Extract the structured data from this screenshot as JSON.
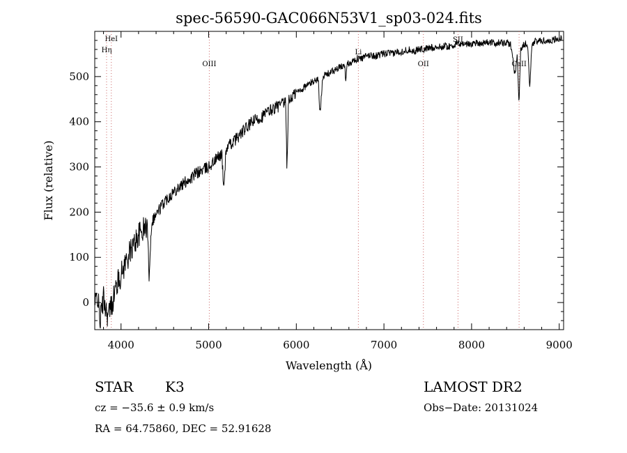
{
  "chart_data": {
    "type": "line",
    "title": "spec-56590-GAC066N53V1_sp03-024.fits",
    "xlabel": "Wavelength (Å)",
    "ylabel": "Flux (relative)",
    "xlim": [
      3700,
      9050
    ],
    "ylim": [
      -60,
      600
    ],
    "x_ticks": [
      4000,
      5000,
      6000,
      7000,
      8000,
      9000
    ],
    "y_ticks": [
      0,
      100,
      200,
      300,
      400,
      500
    ],
    "grid": false,
    "line_color": "#000000",
    "marker_color": "#cc6666",
    "spectral_lines": [
      {
        "name": "HeI",
        "wavelength": 3889
      },
      {
        "name": "Hη",
        "wavelength": 3835
      },
      {
        "name": "OIII",
        "wavelength": 5007
      },
      {
        "name": "Li",
        "wavelength": 6708
      },
      {
        "name": "OII",
        "wavelength": 7450
      },
      {
        "name": "SII",
        "wavelength": 7845
      },
      {
        "name": "CaII",
        "wavelength": 8542
      }
    ],
    "series": [
      {
        "x": [
          3700,
          3730,
          3760,
          3800,
          3850,
          3900,
          3950,
          4000,
          4050,
          4100,
          4150,
          4200,
          4250,
          4300,
          4320,
          4350,
          4400,
          4450,
          4500,
          4550,
          4600,
          4650,
          4700,
          4750,
          4800,
          4850,
          4900,
          4950,
          5000,
          5050,
          5100,
          5150,
          5170,
          5200,
          5250,
          5300,
          5350,
          5400,
          5450,
          5500,
          5550,
          5600,
          5650,
          5700,
          5750,
          5800,
          5850,
          5880,
          5893,
          5910,
          5950,
          6000,
          6050,
          6100,
          6150,
          6200,
          6250,
          6270,
          6300,
          6350,
          6400,
          6450,
          6500,
          6550,
          6563,
          6580,
          6600,
          6650,
          6700,
          6750,
          6800,
          6850,
          6900,
          6950,
          7000,
          7050,
          7100,
          7150,
          7200,
          7250,
          7300,
          7350,
          7400,
          7450,
          7500,
          7550,
          7600,
          7650,
          7700,
          7750,
          7800,
          7850,
          7900,
          7950,
          8000,
          8050,
          8100,
          8150,
          8200,
          8250,
          8300,
          8350,
          8400,
          8450,
          8498,
          8520,
          8542,
          8560,
          8600,
          8640,
          8662,
          8690,
          8750,
          8800,
          8850,
          8900,
          8950,
          9000,
          9030
        ],
        "y": [
          -10,
          20,
          -40,
          10,
          -30,
          0,
          40,
          60,
          90,
          110,
          130,
          150,
          160,
          170,
          60,
          180,
          195,
          210,
          225,
          235,
          245,
          255,
          260,
          270,
          275,
          285,
          290,
          295,
          300,
          310,
          320,
          330,
          250,
          340,
          350,
          360,
          370,
          380,
          390,
          400,
          405,
          410,
          418,
          425,
          430,
          435,
          440,
          440,
          290,
          445,
          455,
          465,
          470,
          478,
          484,
          490,
          495,
          415,
          500,
          505,
          510,
          515,
          520,
          525,
          495,
          528,
          530,
          535,
          540,
          540,
          545,
          548,
          545,
          548,
          550,
          552,
          550,
          555,
          555,
          558,
          560,
          555,
          562,
          560,
          562,
          565,
          565,
          565,
          568,
          566,
          570,
          572,
          573,
          572,
          572,
          575,
          574,
          575,
          576,
          574,
          575,
          574,
          574,
          570,
          500,
          555,
          440,
          560,
          572,
          573,
          475,
          575,
          578,
          580,
          578,
          580,
          582,
          584,
          583
        ]
      }
    ]
  },
  "info": {
    "object_type": "STAR",
    "subclass": "K3",
    "survey": "LAMOST DR2",
    "cz": "cz = −35.6 ± 0.9 km/s",
    "obs_date": "Obs−Date: 20131024",
    "coords": "RA =  64.75860, DEC =  52.91628"
  }
}
